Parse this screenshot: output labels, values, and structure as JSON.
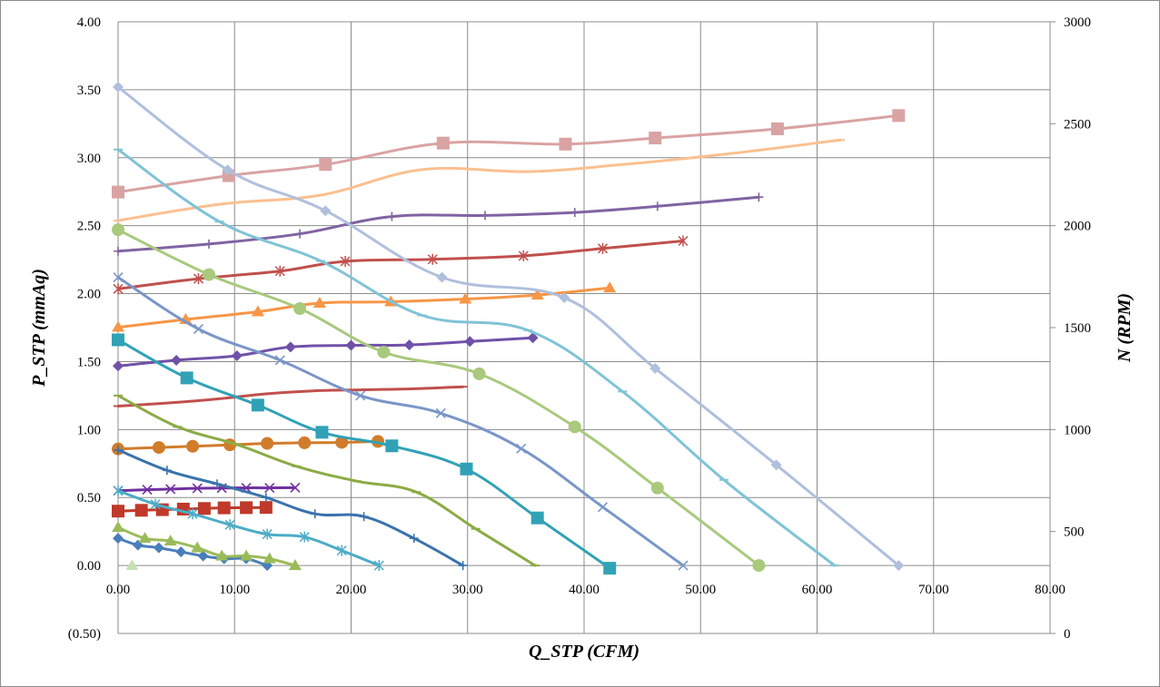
{
  "chart_data": {
    "type": "line",
    "title": "",
    "xlabel": "Q_STP (CFM)",
    "ylabel": "P_STP (mmAq)",
    "y2label": "N (RPM)",
    "xlim": [
      0,
      80
    ],
    "ylim": [
      -0.5,
      4.0
    ],
    "y2lim": [
      0,
      3000
    ],
    "x_ticks": [
      "0.00",
      "10.00",
      "20.00",
      "30.00",
      "40.00",
      "50.00",
      "60.00",
      "70.00",
      "80.00"
    ],
    "y_ticks": [
      "(0.50)",
      "0.00",
      "0.50",
      "1.00",
      "1.50",
      "2.00",
      "2.50",
      "3.00",
      "3.50",
      "4.00"
    ],
    "y2_ticks": [
      "0",
      "500",
      "1000",
      "1500",
      "2000",
      "2500",
      "3000"
    ],
    "grid": true,
    "negative_tick_color": "#ff0000",
    "pressure_series": [
      {
        "color": "#4a7ebb",
        "marker": "diamond",
        "x": [
          0.0,
          1.7,
          3.5,
          5.4,
          7.3,
          9.1,
          11.0,
          12.8
        ],
        "y": [
          0.2,
          0.15,
          0.13,
          0.1,
          0.07,
          0.05,
          0.05,
          0.0
        ]
      },
      {
        "color": "#9bbb59",
        "marker": "triangle",
        "x": [
          0.0,
          2.3,
          4.5,
          6.8,
          8.9,
          11.0,
          13.0,
          15.2
        ],
        "y": [
          0.28,
          0.2,
          0.18,
          0.13,
          0.07,
          0.07,
          0.05,
          0.0
        ]
      },
      {
        "color": "#4bacc6",
        "marker": "star",
        "x": [
          0.0,
          3.2,
          6.4,
          9.6,
          12.8,
          16.0,
          19.2,
          22.4
        ],
        "y": [
          0.55,
          0.45,
          0.38,
          0.3,
          0.23,
          0.21,
          0.11,
          0.0
        ]
      },
      {
        "color": "#3a73ad",
        "marker": "plus",
        "x": [
          0.0,
          4.2,
          8.5,
          12.7,
          16.9,
          21.1,
          25.4,
          29.6
        ],
        "y": [
          0.85,
          0.7,
          0.6,
          0.5,
          0.38,
          0.36,
          0.2,
          0.0
        ]
      },
      {
        "color": "#8cab45",
        "marker": "dash",
        "x": [
          0.0,
          5.1,
          10.2,
          15.3,
          20.5,
          25.6,
          30.7,
          35.8
        ],
        "y": [
          1.25,
          1.02,
          0.89,
          0.73,
          0.62,
          0.54,
          0.27,
          0.0
        ]
      },
      {
        "color": "#31a2b6",
        "marker": "square",
        "x": [
          0.0,
          5.9,
          12.0,
          17.5,
          23.5,
          29.9,
          36.0,
          42.2
        ],
        "y": [
          1.66,
          1.38,
          1.18,
          0.98,
          0.88,
          0.71,
          0.35,
          -0.02
        ]
      },
      {
        "color": "#7a96c8",
        "marker": "x",
        "x": [
          0.0,
          6.9,
          13.9,
          20.8,
          27.7,
          34.6,
          41.6,
          48.5
        ],
        "y": [
          2.12,
          1.74,
          1.51,
          1.25,
          1.12,
          0.86,
          0.43,
          0.0
        ]
      },
      {
        "color": "#a9c97d",
        "marker": "circle",
        "x": [
          0.0,
          7.8,
          15.6,
          22.8,
          31.0,
          39.2,
          46.3,
          55.0
        ],
        "y": [
          2.47,
          2.14,
          1.89,
          1.57,
          1.41,
          1.02,
          0.57,
          0.0
        ]
      },
      {
        "color": "#7fc3d6",
        "marker": "dash",
        "x": [
          0.0,
          8.7,
          17.4,
          26.1,
          35.2,
          43.3,
          52.0,
          61.5
        ],
        "y": [
          3.06,
          2.53,
          2.24,
          1.84,
          1.73,
          1.28,
          0.63,
          0.0
        ]
      },
      {
        "color": "#b0bfdd",
        "marker": "diamond",
        "x": [
          0.0,
          9.4,
          17.8,
          27.8,
          38.3,
          46.1,
          56.5,
          67.0
        ],
        "y": [
          3.52,
          2.91,
          2.61,
          2.12,
          1.97,
          1.45,
          0.74,
          0.0
        ]
      },
      {
        "color": "#c6e0b4",
        "marker": "triangle",
        "x": [
          1.2
        ],
        "y": [
          0.0
        ]
      }
    ],
    "rpm_series": [
      {
        "color": "#4a7ebb",
        "marker": "diamond",
        "x": [
          0.0,
          4.0,
          8.0,
          12.0
        ],
        "y": [
          0.0,
          0.0,
          0.0,
          0.0
        ]
      },
      {
        "color": "#9bbb59",
        "marker": "triangle",
        "x": [
          0.0,
          5.0,
          10.0,
          15.0
        ],
        "y": [
          0.0,
          0.0,
          0.0,
          0.0
        ]
      },
      {
        "color": "#7030a0",
        "marker": "x",
        "x": [
          0.0,
          2.5,
          4.5,
          6.8,
          8.9,
          11.0,
          13.0,
          15.2
        ],
        "y": [
          700,
          705,
          708,
          712,
          713,
          714,
          714,
          715
        ]
      },
      {
        "color": "#c0392b",
        "marker": "square",
        "x": [
          0.0,
          2.0,
          3.8,
          5.6,
          7.4,
          9.1,
          11.0,
          12.7
        ],
        "y": [
          600,
          604,
          607,
          610,
          613,
          616,
          617,
          618
        ]
      },
      {
        "color": "#d07c2a",
        "marker": "circle",
        "x": [
          0.0,
          3.5,
          6.4,
          9.6,
          12.8,
          16.0,
          19.2,
          22.3
        ],
        "y": [
          905,
          912,
          918,
          925,
          932,
          935,
          937,
          942
        ]
      },
      {
        "color": "#c0504d",
        "marker": "dash",
        "x": [
          0.0,
          4.2,
          8.5,
          12.7,
          16.9,
          21.1,
          25.4,
          29.6
        ],
        "y": [
          1115,
          1130,
          1150,
          1175,
          1190,
          1195,
          1200,
          1210
        ]
      },
      {
        "color": "#7051a8",
        "marker": "diamond",
        "x": [
          0.0,
          5.0,
          10.2,
          14.8,
          20.0,
          25.0,
          30.2,
          35.6
        ],
        "y": [
          1312,
          1340,
          1362,
          1405,
          1413,
          1415,
          1432,
          1450
        ]
      },
      {
        "color": "#f79646",
        "marker": "triangle",
        "x": [
          0.0,
          5.8,
          12.0,
          17.3,
          23.4,
          29.8,
          36.0,
          42.2
        ],
        "y": [
          1502,
          1540,
          1578,
          1620,
          1627,
          1640,
          1660,
          1695
        ]
      },
      {
        "color": "#c0504d",
        "marker": "star",
        "x": [
          0.0,
          6.9,
          13.9,
          19.5,
          27.0,
          34.8,
          41.6,
          48.5
        ],
        "y": [
          1690,
          1740,
          1777,
          1825,
          1835,
          1852,
          1888,
          1925
        ]
      },
      {
        "color": "#8064a2",
        "marker": "plus",
        "x": [
          0.0,
          7.8,
          15.6,
          23.5,
          31.5,
          39.2,
          46.3,
          55.0
        ],
        "y": [
          1875,
          1910,
          1960,
          2045,
          2050,
          2065,
          2095,
          2140
        ]
      },
      {
        "color": "#fac090",
        "marker": "dash",
        "x": [
          0.0,
          8.7,
          17.4,
          26.1,
          35.2,
          43.3,
          52.0,
          62.0
        ],
        "y": [
          2025,
          2105,
          2150,
          2275,
          2265,
          2300,
          2350,
          2420
        ]
      },
      {
        "color": "#d9a3a3",
        "marker": "square",
        "x": [
          0.0,
          9.5,
          17.8,
          27.9,
          38.4,
          46.1,
          56.6,
          67.0
        ],
        "y": [
          2165,
          2245,
          2300,
          2405,
          2400,
          2430,
          2475,
          2540
        ]
      }
    ]
  }
}
